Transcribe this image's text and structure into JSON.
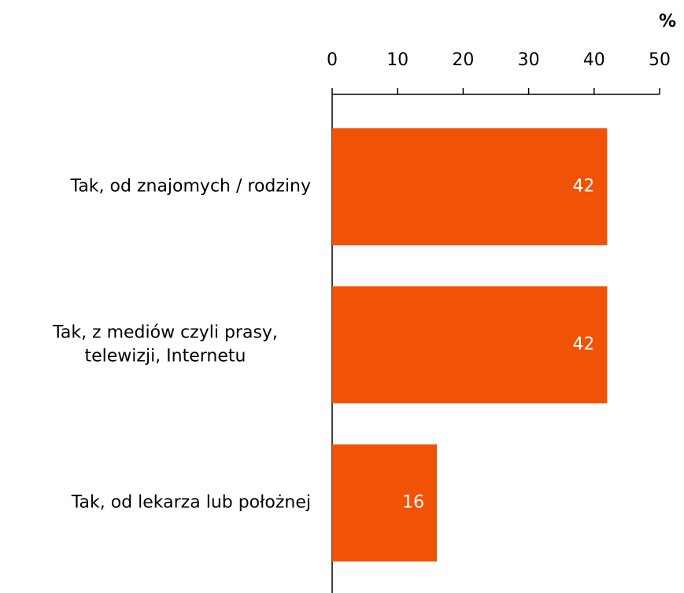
{
  "chart_data": {
    "type": "bar",
    "orientation": "horizontal",
    "unit_label": "%",
    "categories": [
      "Tak, od znajomych / rodziny",
      "Tak, z mediów czyli prasy,\ntelewizji, Internetu",
      "Tak, od lekarza lub położnej"
    ],
    "values": [
      42,
      42,
      16
    ],
    "color": "#f05206",
    "xlim": [
      0,
      50
    ],
    "xticks": [
      0,
      10,
      20,
      30,
      40,
      50
    ],
    "axis_position": "top"
  }
}
